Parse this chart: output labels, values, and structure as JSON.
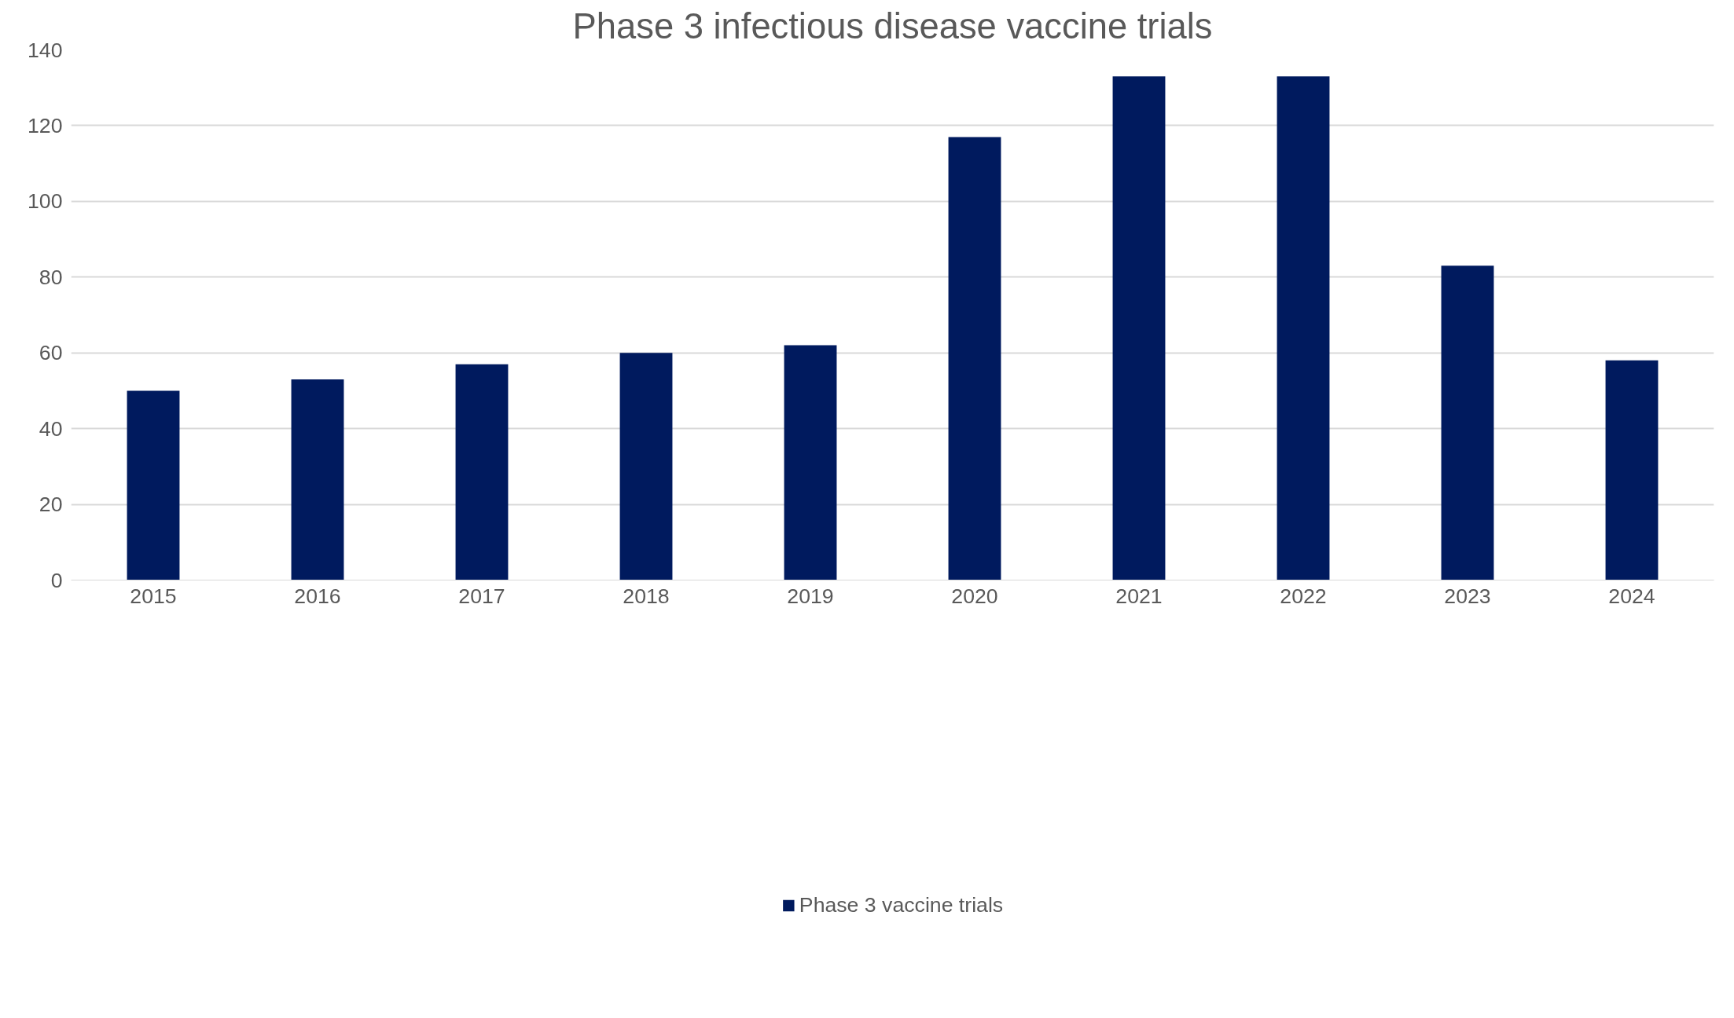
{
  "chart_data": {
    "type": "bar",
    "title": "Phase 3 infectious disease vaccine trials",
    "categories": [
      "2015",
      "2016",
      "2017",
      "2018",
      "2019",
      "2020",
      "2021",
      "2022",
      "2023",
      "2024"
    ],
    "series": [
      {
        "name": "Phase 3 vaccine trials",
        "color": "#001a5e",
        "values": [
          50,
          53,
          57,
          60,
          62,
          117,
          133,
          133,
          83,
          58
        ]
      }
    ],
    "ylim": [
      0,
      140
    ],
    "yticks": [
      0,
      20,
      40,
      60,
      80,
      100,
      120,
      140
    ],
    "grid": "y",
    "legend": "bottom"
  }
}
